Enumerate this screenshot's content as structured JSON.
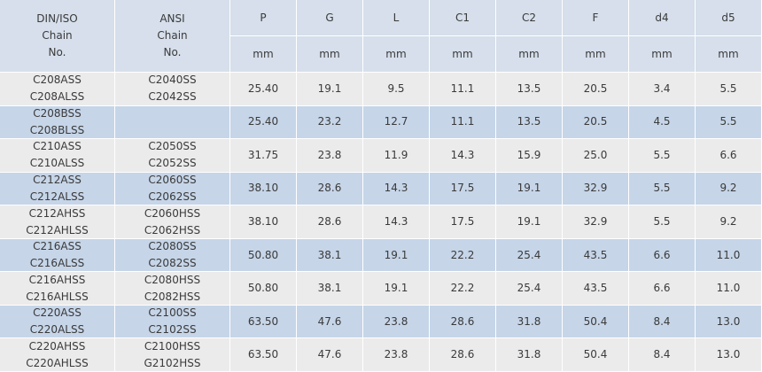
{
  "table": {
    "header": {
      "din": [
        "DIN/ISO",
        "Chain",
        "No."
      ],
      "ansi": [
        "ANSI",
        "Chain",
        "No."
      ],
      "columns": [
        "P",
        "G",
        "L",
        "C1",
        "C2",
        "F",
        "d4",
        "d5"
      ],
      "units": [
        "mm",
        "mm",
        "mm",
        "mm",
        "mm",
        "mm",
        "mm",
        "mm"
      ]
    },
    "rows": [
      {
        "din": [
          "C208ASS",
          "C208ALSS"
        ],
        "ansi": [
          "C2040SS",
          "C2042SS"
        ],
        "values": [
          "25.40",
          "19.1",
          "9.5",
          "11.1",
          "13.5",
          "20.5",
          "3.4",
          "5.5"
        ]
      },
      {
        "din": [
          "C208BSS",
          "C208BLSS"
        ],
        "ansi": [],
        "values": [
          "25.40",
          "23.2",
          "12.7",
          "11.1",
          "13.5",
          "20.5",
          "4.5",
          "5.5"
        ]
      },
      {
        "din": [
          "C210ASS",
          "C210ALSS"
        ],
        "ansi": [
          "C2050SS",
          "C2052SS"
        ],
        "values": [
          "31.75",
          "23.8",
          "11.9",
          "14.3",
          "15.9",
          "25.0",
          "5.5",
          "6.6"
        ]
      },
      {
        "din": [
          "C212ASS",
          "C212ALSS"
        ],
        "ansi": [
          "C2060SS",
          "C2062SS"
        ],
        "values": [
          "38.10",
          "28.6",
          "14.3",
          "17.5",
          "19.1",
          "32.9",
          "5.5",
          "9.2"
        ]
      },
      {
        "din": [
          "C212AHSS",
          "C212AHLSS"
        ],
        "ansi": [
          "C2060HSS",
          "C2062HSS"
        ],
        "values": [
          "38.10",
          "28.6",
          "14.3",
          "17.5",
          "19.1",
          "32.9",
          "5.5",
          "9.2"
        ]
      },
      {
        "din": [
          "C216ASS",
          "C216ALSS"
        ],
        "ansi": [
          "C2080SS",
          "C2082SS"
        ],
        "values": [
          "50.80",
          "38.1",
          "19.1",
          "22.2",
          "25.4",
          "43.5",
          "6.6",
          "11.0"
        ]
      },
      {
        "din": [
          "C216AHSS",
          "C216AHLSS"
        ],
        "ansi": [
          "C2080HSS",
          "C2082HSS"
        ],
        "values": [
          "50.80",
          "38.1",
          "19.1",
          "22.2",
          "25.4",
          "43.5",
          "6.6",
          "11.0"
        ]
      },
      {
        "din": [
          "C220ASS",
          "C220ALSS"
        ],
        "ansi": [
          "C2100SS",
          "C2102SS"
        ],
        "values": [
          "63.50",
          "47.6",
          "23.8",
          "28.6",
          "31.8",
          "50.4",
          "8.4",
          "13.0"
        ]
      },
      {
        "din": [
          "C220AHSS",
          "C220AHLSS"
        ],
        "ansi": [
          "C2100HSS",
          "G2102HSS"
        ],
        "values": [
          "63.50",
          "47.6",
          "23.8",
          "28.6",
          "31.8",
          "50.4",
          "8.4",
          "13.0"
        ]
      }
    ]
  }
}
